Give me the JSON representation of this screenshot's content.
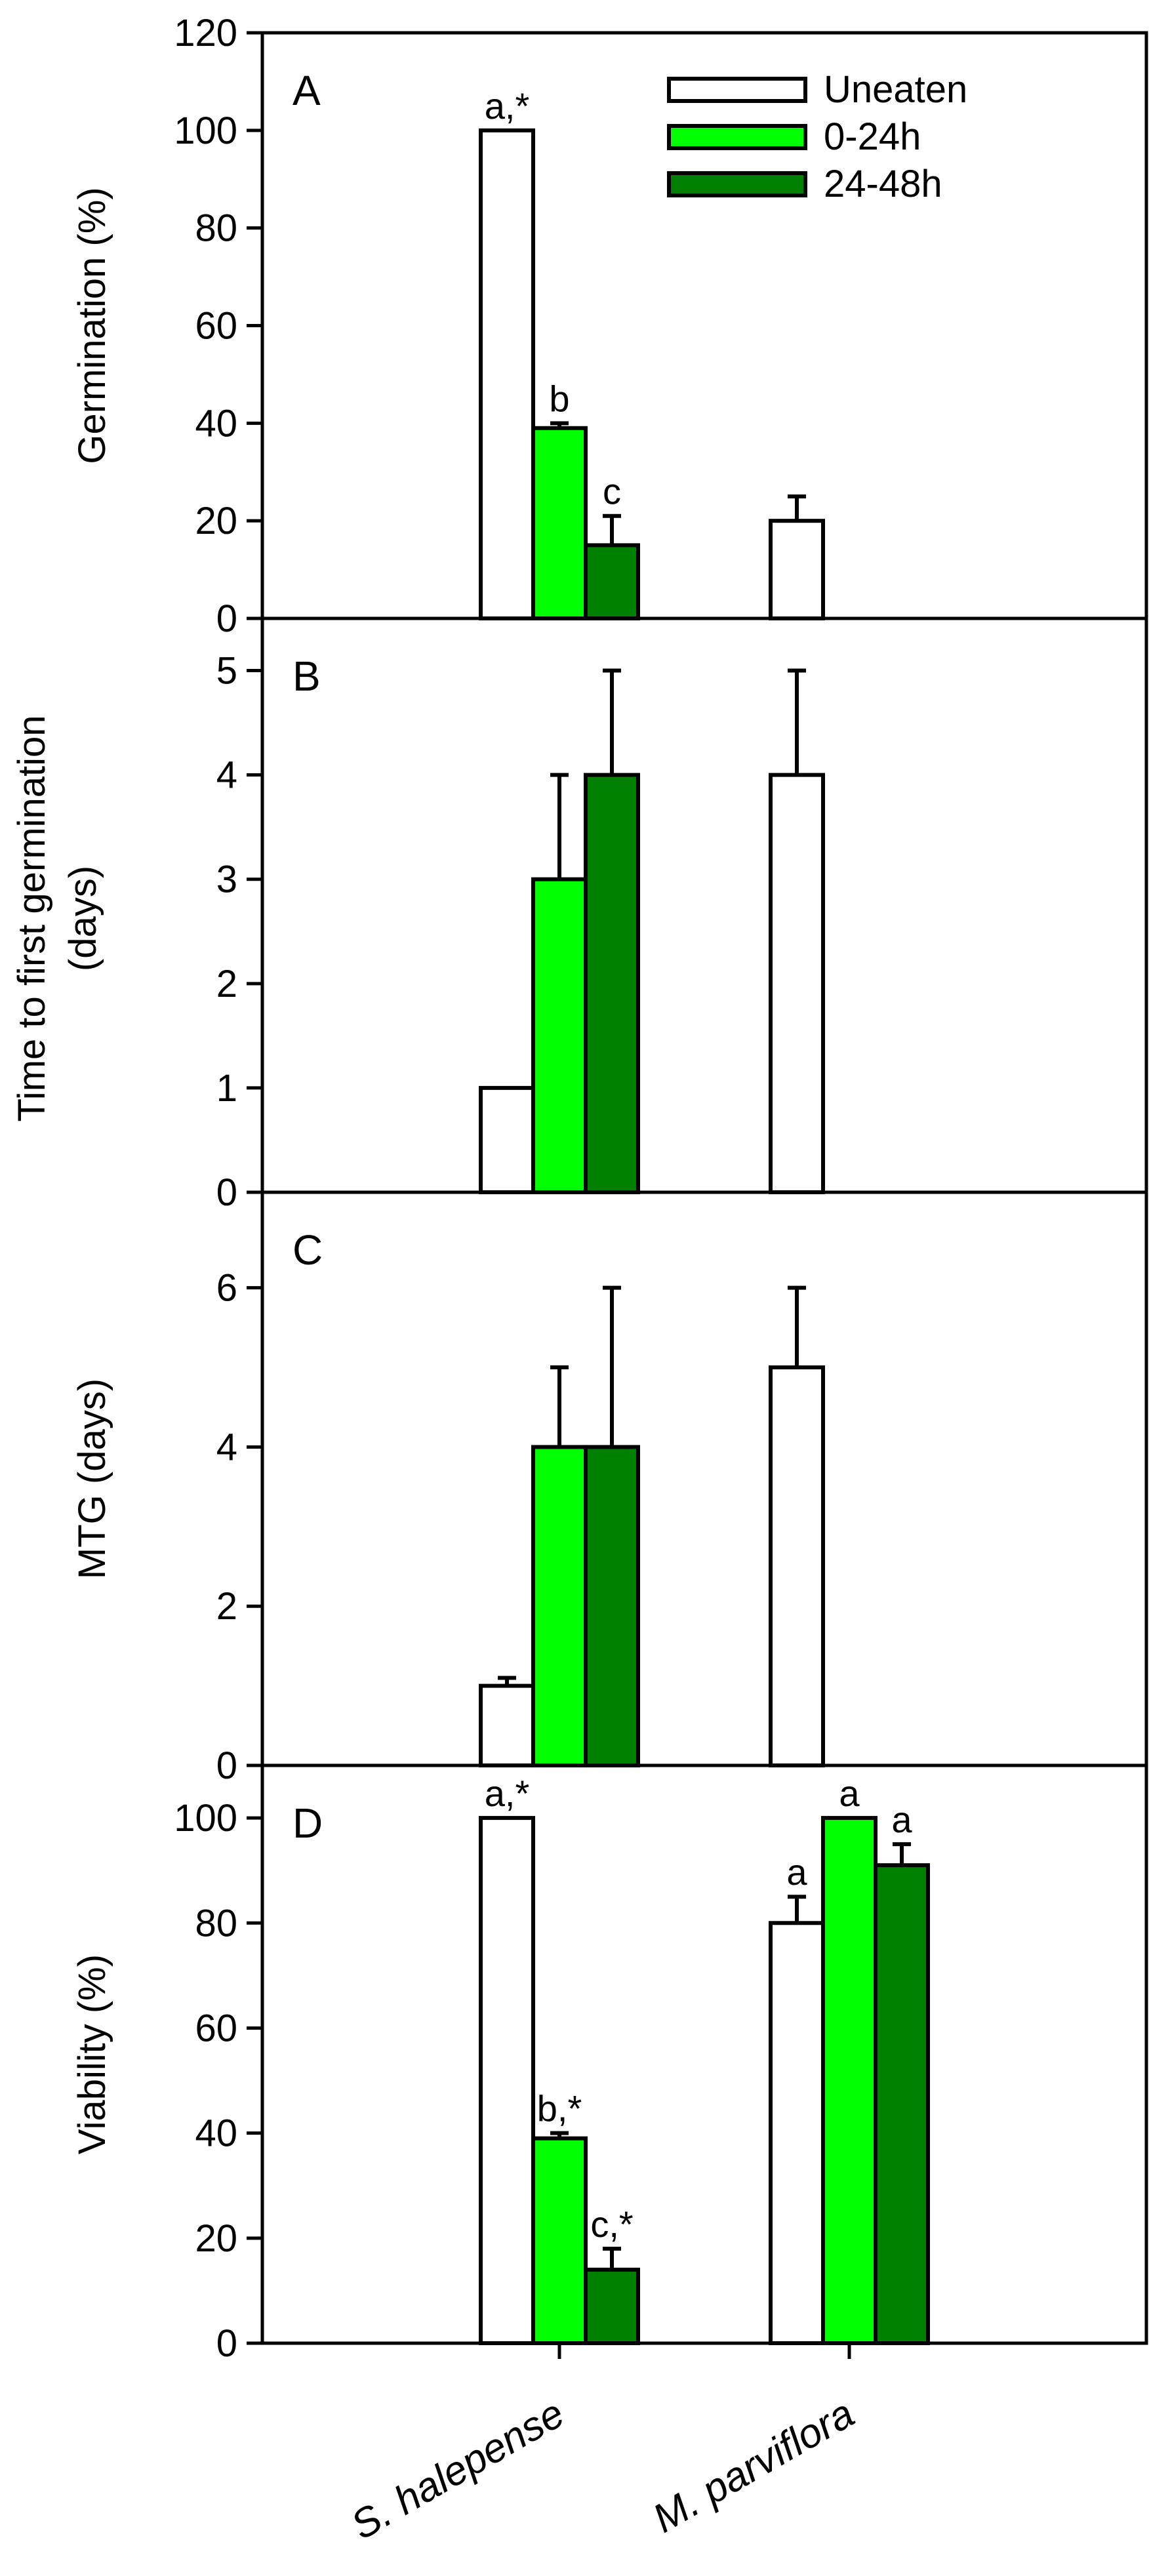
{
  "colors": {
    "uneaten": "#ffffff",
    "h0_24": "#00ff00",
    "h24_48": "#008000",
    "stroke": "#000000"
  },
  "legend": [
    "Uneaten",
    "0-24h",
    "24-48h"
  ],
  "categories": [
    "S. halepense",
    "M. parviflora"
  ],
  "chart_data": [
    {
      "panel": "A",
      "type": "bar",
      "ylabel_lines": [
        "Germination (%)"
      ],
      "ylim": [
        0,
        120
      ],
      "yticks": [
        0,
        20,
        40,
        60,
        80,
        100,
        120
      ],
      "categories": [
        "S. halepense",
        "M. parviflora"
      ],
      "series": [
        {
          "name": "Uneaten",
          "values": [
            100,
            20
          ],
          "errors": [
            0,
            5
          ],
          "labels": [
            "a,*",
            ""
          ]
        },
        {
          "name": "0-24h",
          "values": [
            39,
            null
          ],
          "errors": [
            1,
            null
          ],
          "labels": [
            "b",
            ""
          ]
        },
        {
          "name": "24-48h",
          "values": [
            15,
            null
          ],
          "errors": [
            6,
            null
          ],
          "labels": [
            "c",
            ""
          ]
        }
      ]
    },
    {
      "panel": "B",
      "type": "bar",
      "ylabel_lines": [
        "Time to first germination",
        "(days)"
      ],
      "ylim": [
        0,
        5.5
      ],
      "yticks": [
        0,
        1,
        2,
        3,
        4,
        5
      ],
      "categories": [
        "S. halepense",
        "M. parviflora"
      ],
      "series": [
        {
          "name": "Uneaten",
          "values": [
            1,
            4
          ],
          "errors": [
            0,
            1
          ],
          "labels": [
            "",
            ""
          ]
        },
        {
          "name": "0-24h",
          "values": [
            3,
            null
          ],
          "errors": [
            1,
            null
          ],
          "labels": [
            "",
            ""
          ]
        },
        {
          "name": "24-48h",
          "values": [
            4,
            null
          ],
          "errors": [
            1,
            null
          ],
          "labels": [
            "",
            ""
          ]
        }
      ]
    },
    {
      "panel": "C",
      "type": "bar",
      "ylabel_lines": [
        "MTG (days)"
      ],
      "ylim": [
        0,
        7.2
      ],
      "yticks": [
        0,
        2,
        4,
        6
      ],
      "categories": [
        "S. halepense",
        "M. parviflora"
      ],
      "series": [
        {
          "name": "Uneaten",
          "values": [
            1,
            5
          ],
          "errors": [
            0.1,
            1
          ],
          "labels": [
            "",
            ""
          ]
        },
        {
          "name": "0-24h",
          "values": [
            4,
            null
          ],
          "errors": [
            1,
            null
          ],
          "labels": [
            "",
            ""
          ]
        },
        {
          "name": "24-48h",
          "values": [
            4,
            null
          ],
          "errors": [
            2,
            null
          ],
          "labels": [
            "",
            ""
          ]
        }
      ]
    },
    {
      "panel": "D",
      "type": "bar",
      "ylabel_lines": [
        "Viability (%)"
      ],
      "ylim": [
        0,
        110
      ],
      "yticks": [
        0,
        20,
        40,
        60,
        80,
        100
      ],
      "categories": [
        "S. halepense",
        "M. parviflora"
      ],
      "series": [
        {
          "name": "Uneaten",
          "values": [
            100,
            80
          ],
          "errors": [
            0,
            5
          ],
          "labels": [
            "a,*",
            "a"
          ]
        },
        {
          "name": "0-24h",
          "values": [
            39,
            100
          ],
          "errors": [
            1,
            0
          ],
          "labels": [
            "b,*",
            "a"
          ]
        },
        {
          "name": "24-48h",
          "values": [
            14,
            91
          ],
          "errors": [
            4,
            4
          ],
          "labels": [
            "c,*",
            "a"
          ]
        }
      ]
    }
  ]
}
